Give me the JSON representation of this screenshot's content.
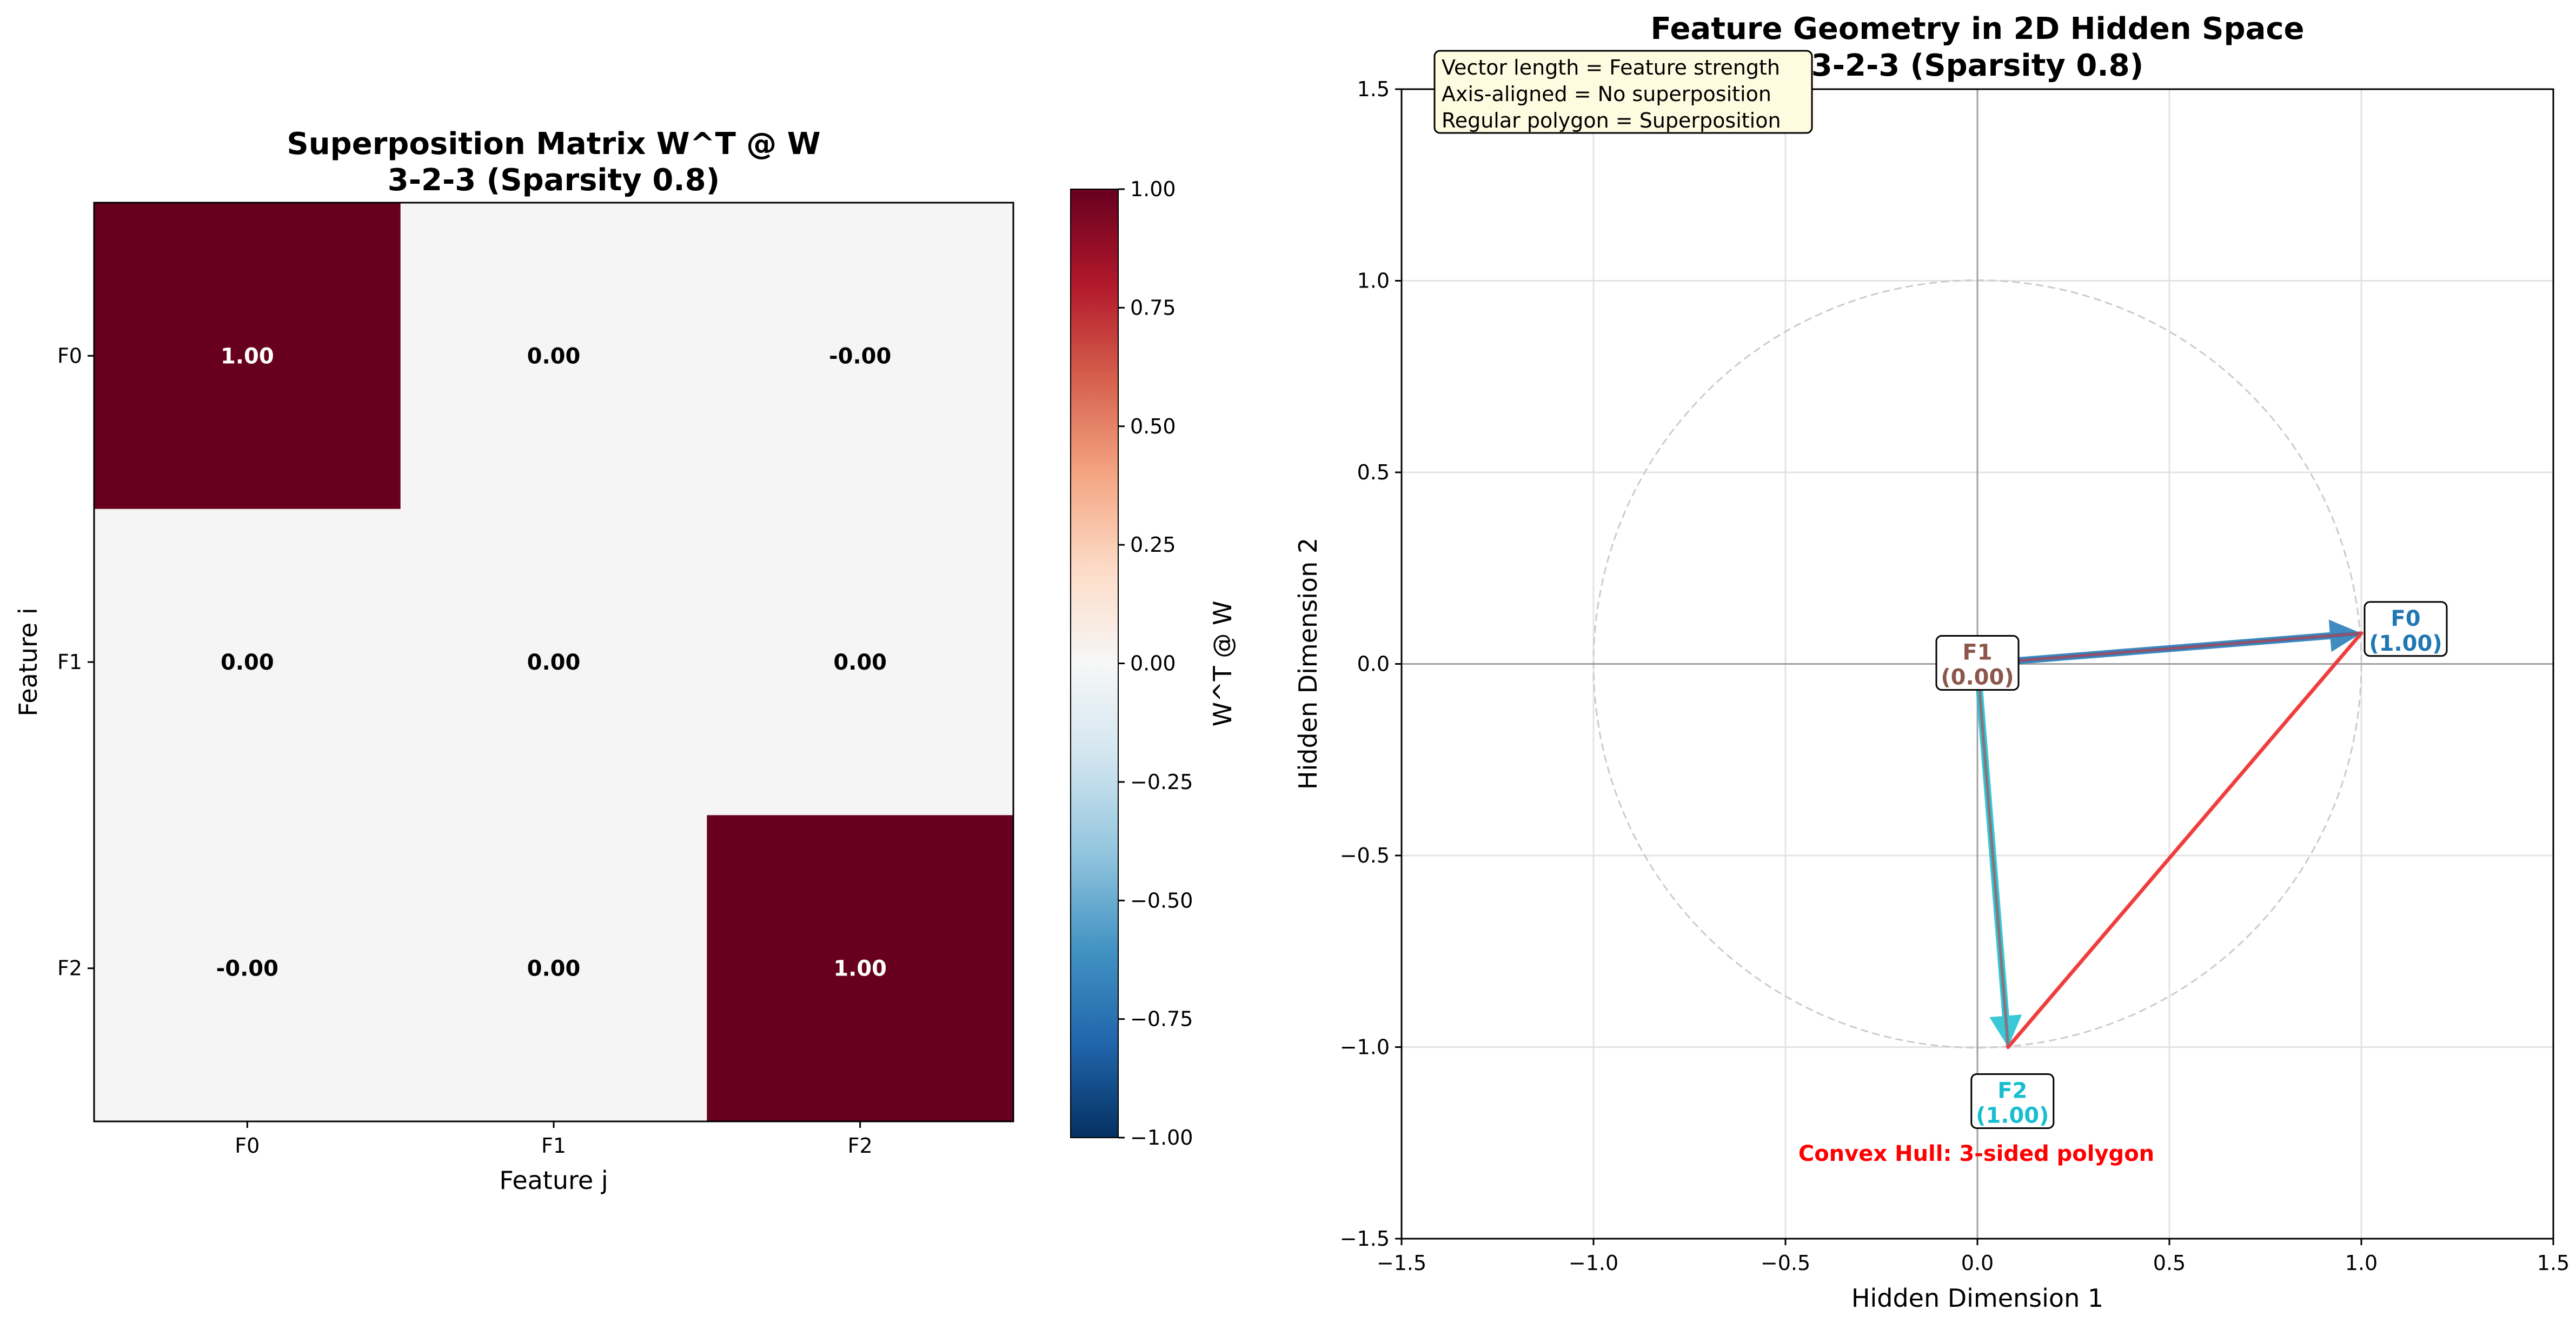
{
  "chart_data": [
    {
      "type": "heatmap",
      "title_line1": "Superposition Matrix W^T @ W",
      "title_line2": "3-2-3 (Sparsity 0.8)",
      "xlabel": "Feature j",
      "ylabel": "Feature i",
      "x_categories": [
        "F0",
        "F1",
        "F2"
      ],
      "y_categories": [
        "F0",
        "F1",
        "F2"
      ],
      "values": [
        [
          1.0,
          0.0,
          -0.0
        ],
        [
          0.0,
          0.0,
          0.0
        ],
        [
          -0.0,
          0.0,
          1.0
        ]
      ],
      "cell_labels": [
        [
          "1.00",
          "0.00",
          "-0.00"
        ],
        [
          "0.00",
          "0.00",
          "0.00"
        ],
        [
          "-0.00",
          "0.00",
          "1.00"
        ]
      ],
      "colorbar": {
        "label": "W^T @ W",
        "range": [
          -1.0,
          1.0
        ],
        "colormap": "RdBu_r",
        "ticks": [
          1.0,
          0.75,
          0.5,
          0.25,
          0.0,
          -0.25,
          -0.5,
          -0.75,
          -1.0
        ],
        "tick_labels": [
          "1.00",
          "0.75",
          "0.50",
          "0.25",
          "0.00",
          "−0.25",
          "−0.50",
          "−0.75",
          "−1.00"
        ]
      }
    },
    {
      "type": "scatter",
      "title_line1": "Feature Geometry in 2D Hidden Space",
      "title_line2": "3-2-3 (Sparsity 0.8)",
      "xlabel": "Hidden Dimension 1",
      "ylabel": "Hidden Dimension 2",
      "xlim": [
        -1.5,
        1.5
      ],
      "ylim": [
        -1.5,
        1.5
      ],
      "grid": true,
      "x_ticks": [
        -1.5,
        -1.0,
        -0.5,
        0.0,
        0.5,
        1.0,
        1.5
      ],
      "x_tick_labels": [
        "−1.5",
        "−1.0",
        "−0.5",
        "0.0",
        "0.5",
        "1.0",
        "1.5"
      ],
      "y_ticks": [
        1.5,
        1.0,
        0.5,
        0.0,
        -0.5,
        -1.0,
        -1.5
      ],
      "y_tick_labels": [
        "1.5",
        "1.0",
        "0.5",
        "0.0",
        "−0.5",
        "−1.0",
        "−1.5"
      ],
      "unit_circle": true,
      "vectors": [
        {
          "name": "F0",
          "strength": "(1.00)",
          "x": 1.0,
          "y": 0.08,
          "color": "#1f77b4",
          "label_color": "#1f77b4"
        },
        {
          "name": "F1",
          "strength": "(0.00)",
          "x": 0.0,
          "y": 0.0,
          "color": "#8c564b",
          "label_color": "#8c564b"
        },
        {
          "name": "F2",
          "strength": "(1.00)",
          "x": 0.08,
          "y": -1.0,
          "color": "#17becf",
          "label_color": "#17becf"
        }
      ],
      "hull_color": "#ee3333",
      "hull_label": "Convex Hull: 3-sided polygon",
      "info_box": [
        "Vector length = Feature strength",
        "Axis-aligned = No superposition",
        "Regular polygon = Superposition"
      ]
    }
  ]
}
